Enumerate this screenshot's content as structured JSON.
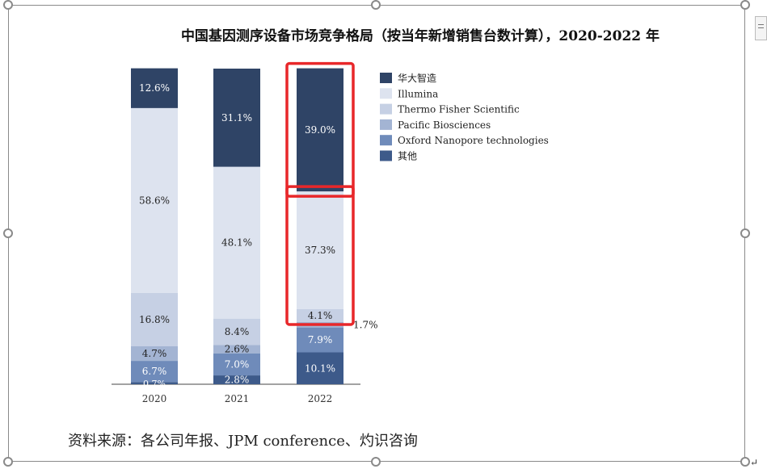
{
  "chart_data": {
    "type": "bar",
    "stacked": true,
    "title": "中国基因测序设备市场竞争格局（按当年新增销售台数计算），2020-2022 年",
    "categories": [
      "2020",
      "2021",
      "2022"
    ],
    "ylim": [
      0,
      100
    ],
    "series": [
      {
        "name": "其他",
        "color": "#3d5a8a",
        "values": [
          0.7,
          2.8,
          10.1
        ],
        "labels": [
          "0.7%",
          "2.8%",
          "10.1%"
        ]
      },
      {
        "name": "Oxford Nanopore technologies",
        "color": "#6f8bba",
        "values": [
          6.7,
          7.0,
          7.9
        ],
        "labels": [
          "6.7%",
          "7.0%",
          "7.9%"
        ]
      },
      {
        "name": "Pacific Biosciences",
        "color": "#a3b4d3",
        "values": [
          4.7,
          2.6,
          1.7
        ],
        "labels": [
          "4.7%",
          "2.6%",
          "1.7%"
        ]
      },
      {
        "name": "Thermo Fisher Scientific",
        "color": "#c6d0e4",
        "values": [
          16.8,
          8.4,
          4.1
        ],
        "labels": [
          "16.8%",
          "8.4%",
          "4.1%"
        ]
      },
      {
        "name": "Illumina",
        "color": "#dde3ef",
        "values": [
          58.6,
          48.1,
          37.3
        ],
        "labels": [
          "58.6%",
          "48.1%",
          "37.3%"
        ]
      },
      {
        "name": "华大智造",
        "color": "#2f4466",
        "values": [
          12.6,
          31.1,
          39.0
        ],
        "labels": [
          "12.6%",
          "31.1%",
          "39.0%"
        ]
      }
    ],
    "legend_order": [
      "华大智造",
      "Illumina",
      "Thermo Fisher Scientific",
      "Pacific Biosciences",
      "Oxford Nanopore technologies",
      "其他"
    ],
    "legend_position": "right",
    "highlights": [
      "2022 华大智造 39.0%",
      "2022 Illumina 37.3%"
    ],
    "highlight_color": "#e8272a",
    "grid": false
  },
  "source_note": "资料来源：各公司年报、JPM conference、灼识咨询"
}
